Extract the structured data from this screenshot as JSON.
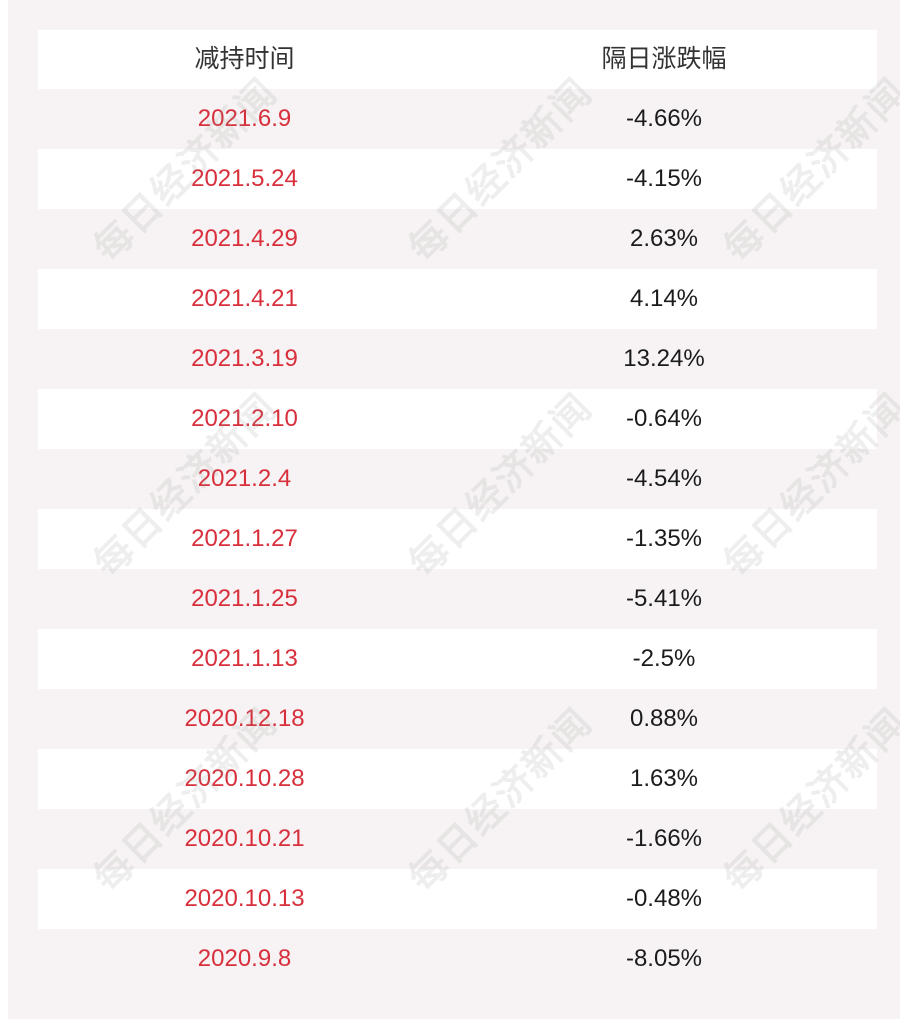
{
  "table": {
    "headers": {
      "date": "减持时间",
      "change": "隔日涨跌幅"
    },
    "rows": [
      {
        "date": "2021.6.9",
        "change": "-4.66%"
      },
      {
        "date": "2021.5.24",
        "change": "-4.15%"
      },
      {
        "date": "2021.4.29",
        "change": "2.63%"
      },
      {
        "date": "2021.4.21",
        "change": "4.14%"
      },
      {
        "date": "2021.3.19",
        "change": "13.24%"
      },
      {
        "date": "2021.2.10",
        "change": "-0.64%"
      },
      {
        "date": "2021.2.4",
        "change": "-4.54%"
      },
      {
        "date": "2021.1.27",
        "change": "-1.35%"
      },
      {
        "date": "2021.1.25",
        "change": "-5.41%"
      },
      {
        "date": "2021.1.13",
        "change": "-2.5%"
      },
      {
        "date": "2020.12.18",
        "change": "0.88%"
      },
      {
        "date": "2020.10.28",
        "change": "1.63%"
      },
      {
        "date": "2020.10.21",
        "change": "-1.66%"
      },
      {
        "date": "2020.10.13",
        "change": "-0.48%"
      },
      {
        "date": "2020.9.8",
        "change": "-8.05%"
      }
    ]
  },
  "watermark": {
    "text": "每日经济新闻"
  },
  "colors": {
    "date_text": "#d7303c",
    "change_text": "#1b1b1b",
    "header_text": "#333333",
    "panel_background": "#f7f3f4"
  }
}
